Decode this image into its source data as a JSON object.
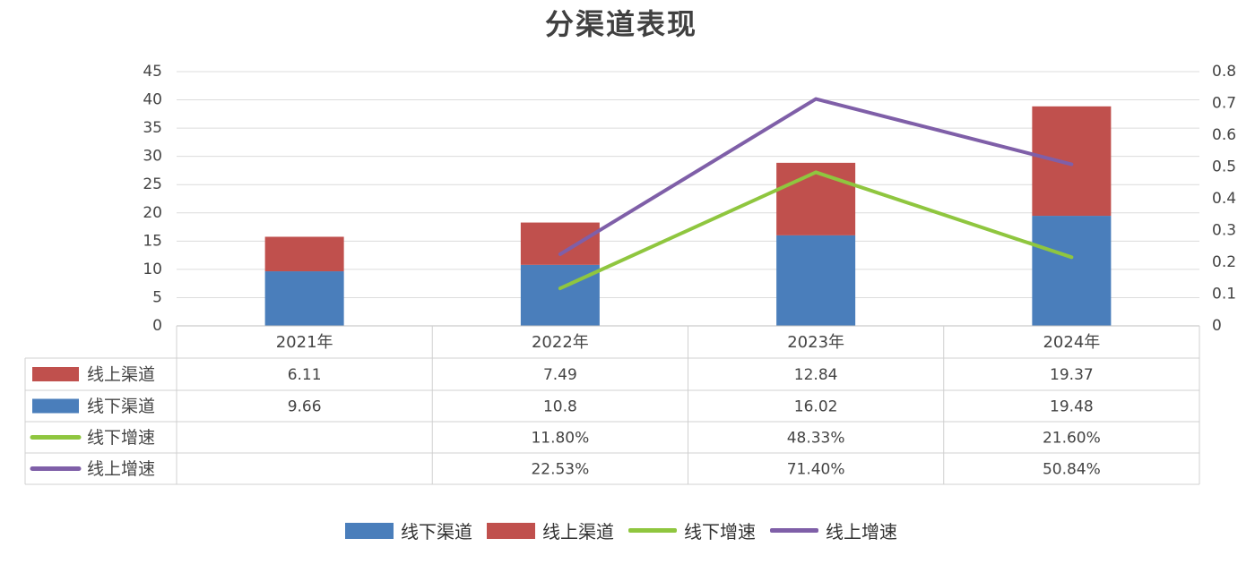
{
  "chart_data": {
    "type": "bar",
    "title": "分渠道表现",
    "categories": [
      "2021年",
      "2022年",
      "2023年",
      "2024年"
    ],
    "stacked": true,
    "series": [
      {
        "name": "线下渠道",
        "kind": "bar",
        "axis": "left",
        "color": "#4a7ebb",
        "values": [
          9.66,
          10.8,
          16.02,
          19.48
        ],
        "labels": [
          "9.66",
          "10.8",
          "16.02",
          "19.48"
        ]
      },
      {
        "name": "线上渠道",
        "kind": "bar",
        "axis": "left",
        "color": "#c0504d",
        "values": [
          6.11,
          7.49,
          12.84,
          19.37
        ],
        "labels": [
          "6.11",
          "7.49",
          "12.84",
          "19.37"
        ]
      },
      {
        "name": "线下增速",
        "kind": "line",
        "axis": "right",
        "color": "#8fc63f",
        "values": [
          null,
          0.118,
          0.4833,
          0.216
        ],
        "labels": [
          "",
          "11.80%",
          "48.33%",
          "21.60%"
        ]
      },
      {
        "name": "线上增速",
        "kind": "line",
        "axis": "right",
        "color": "#7f5fa8",
        "values": [
          null,
          0.2253,
          0.714,
          0.5084
        ],
        "labels": [
          "",
          "22.53%",
          "71.40%",
          "50.84%"
        ]
      }
    ],
    "table_order": [
      1,
      0,
      2,
      3
    ],
    "legend_order": [
      0,
      1,
      2,
      3
    ],
    "ylim_left": [
      0,
      45
    ],
    "yticks_left": [
      "0",
      "5",
      "10",
      "15",
      "20",
      "25",
      "30",
      "35",
      "40",
      "45"
    ],
    "ylim_right": [
      0,
      0.8
    ],
    "yticks_right": [
      "0",
      "0.1",
      "0.2",
      "0.3",
      "0.4",
      "0.5",
      "0.6",
      "0.7",
      "0.8"
    ],
    "grid": true,
    "legend_position": "bottom",
    "data_table": true
  }
}
